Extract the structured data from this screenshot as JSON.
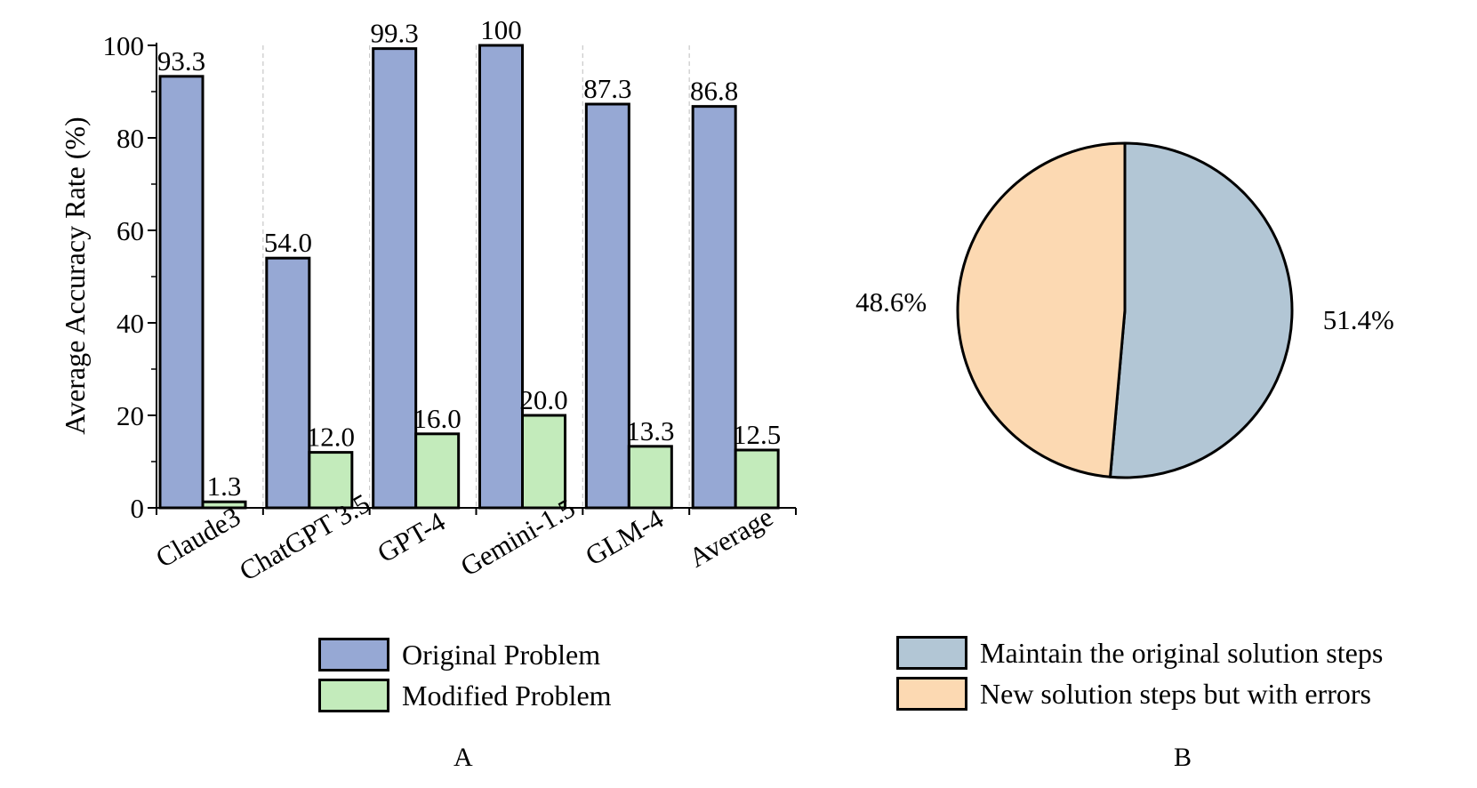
{
  "chart_data": [
    {
      "type": "bar",
      "panel_label": "A",
      "ylabel": "Average Accuracy Rate (%)",
      "ylim": [
        0,
        100
      ],
      "yticks": [
        "0",
        "20",
        "40",
        "60",
        "80",
        "100"
      ],
      "categories": [
        "Claude3",
        "ChatGPT 3.5",
        "GPT-4",
        "Gemini-1.5",
        "GLM-4",
        "Average"
      ],
      "series": [
        {
          "name": "Original Problem",
          "color": "#96a8d4",
          "values": [
            93.3,
            54.0,
            99.3,
            100,
            87.3,
            86.8
          ],
          "labels": [
            "93.3",
            "54.0",
            "99.3",
            "100",
            "87.3",
            "86.8"
          ]
        },
        {
          "name": "Modified Problem",
          "color": "#c3ebbb",
          "values": [
            1.3,
            12.0,
            16.0,
            20.0,
            13.3,
            12.5
          ],
          "labels": [
            "1.3",
            "12.0",
            "16.0",
            "20.0",
            "13.3",
            "12.5"
          ]
        }
      ],
      "grid": "vertical dashed separators between categories",
      "legend_position": "bottom"
    },
    {
      "type": "pie",
      "panel_label": "B",
      "slices": [
        {
          "name": "Maintain the original solution steps",
          "value": 51.4,
          "label": "51.4%",
          "color": "#b2c6d5"
        },
        {
          "name": "New solution steps but with errors",
          "value": 48.6,
          "label": "48.6%",
          "color": "#fcd9b2"
        }
      ],
      "legend_position": "bottom"
    }
  ]
}
